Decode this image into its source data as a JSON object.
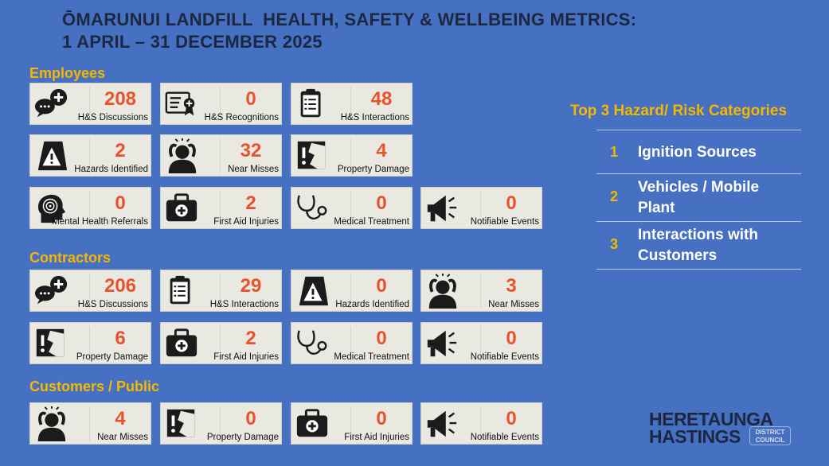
{
  "header": {
    "title_line1": "ŌMARUNUI LANDFILL  HEALTH, SAFETY & WELLBEING METRICS:",
    "title_line2": "1 APRIL – 31 DECEMBER 2025"
  },
  "sections": [
    {
      "heading": "Employees",
      "rows": [
        [
          {
            "value": 208,
            "label": "H&S Discussions"
          },
          {
            "value": 0,
            "label": "H&S Recognitions"
          },
          {
            "value": 48,
            "label": "H&S Interactions"
          }
        ],
        [
          {
            "value": 2,
            "label": "Hazards Identified"
          },
          {
            "value": 32,
            "label": "Near Misses"
          },
          {
            "value": 4,
            "label": "Property Damage"
          }
        ],
        [
          {
            "value": 0,
            "label": "Mental Health Referrals"
          },
          {
            "value": 2,
            "label": "First Aid Injuries"
          },
          {
            "value": 0,
            "label": "Medical Treatment"
          },
          {
            "value": 0,
            "label": "Notifiable Events"
          }
        ]
      ]
    },
    {
      "heading": "Contractors",
      "rows": [
        [
          {
            "value": 206,
            "label": "H&S Discussions"
          },
          {
            "value": 29,
            "label": "H&S Interactions"
          },
          {
            "value": 0,
            "label": "Hazards Identified"
          },
          {
            "value": 3,
            "label": "Near Misses"
          }
        ],
        [
          {
            "value": 6,
            "label": "Property Damage"
          },
          {
            "value": 2,
            "label": "First Aid Injuries"
          },
          {
            "value": 0,
            "label": "Medical Treatment"
          },
          {
            "value": 0,
            "label": "Notifiable Events"
          }
        ]
      ]
    },
    {
      "heading": "Customers / Public",
      "rows": [
        [
          {
            "value": 4,
            "label": "Near Misses"
          },
          {
            "value": 0,
            "label": "Property Damage"
          },
          {
            "value": 0,
            "label": "First Aid Injuries"
          },
          {
            "value": 0,
            "label": "Notifiable Events"
          }
        ]
      ]
    }
  ],
  "top_hazards": {
    "heading": "Top 3 Hazard/ Risk Categories",
    "items": [
      {
        "rank": 1,
        "text": "Ignition Sources"
      },
      {
        "rank": 2,
        "text": "Vehicles / Mobile Plant"
      },
      {
        "rank": 3,
        "text": "Interactions with Customers"
      }
    ]
  },
  "logo": {
    "line1": "HERETAUNGA",
    "line2": "HASTINGS",
    "badge_line1": "DISTRICT",
    "badge_line2": "COUNCIL"
  }
}
